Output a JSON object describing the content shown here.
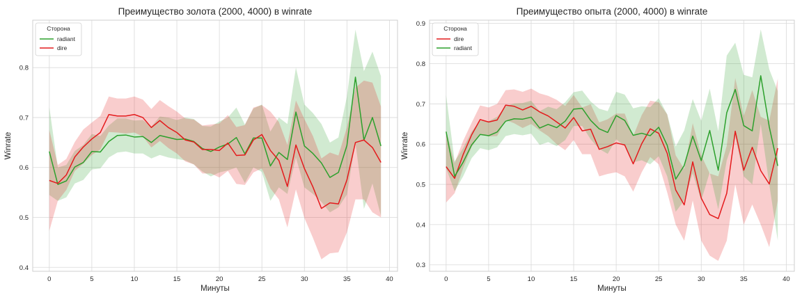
{
  "colors": {
    "green": "#2ca02c",
    "red": "#e41a1c",
    "grid": "#d9d9d9",
    "spine": "#cfcfcf"
  },
  "chart_data": [
    {
      "type": "line",
      "title": "Преимущество золота (2000, 4000) в winrate",
      "xlabel": "Минуты",
      "ylabel": "Winrate",
      "xlim": [
        -1.95,
        40.95
      ],
      "ylim": [
        0.392,
        0.895
      ],
      "xticks": [
        0,
        5,
        10,
        15,
        20,
        25,
        30,
        35,
        40
      ],
      "yticks": [
        0.4,
        0.5,
        0.6,
        0.7,
        0.8
      ],
      "grid": true,
      "legend": {
        "title": "Сторона",
        "placement": "top-left",
        "entries": [
          "radiant",
          "dire"
        ]
      },
      "x": [
        0,
        1,
        2,
        3,
        4,
        5,
        6,
        7,
        8,
        9,
        10,
        11,
        12,
        13,
        14,
        15,
        16,
        17,
        18,
        19,
        20,
        21,
        22,
        23,
        24,
        25,
        26,
        27,
        28,
        29,
        30,
        31,
        32,
        33,
        34,
        35,
        36,
        37,
        38,
        39
      ],
      "series": [
        {
          "name": "radiant",
          "color": "#2ca02c",
          "values": [
            0.632,
            0.566,
            0.573,
            0.601,
            0.61,
            0.632,
            0.631,
            0.652,
            0.664,
            0.665,
            0.661,
            0.662,
            0.65,
            0.664,
            0.66,
            0.656,
            0.657,
            0.652,
            0.638,
            0.632,
            0.641,
            0.647,
            0.66,
            0.627,
            0.659,
            0.659,
            0.603,
            0.63,
            0.616,
            0.711,
            0.643,
            0.628,
            0.609,
            0.58,
            0.59,
            0.644,
            0.781,
            0.655,
            0.7,
            0.643
          ],
          "ci_lower": [
            0.545,
            0.533,
            0.54,
            0.568,
            0.575,
            0.596,
            0.598,
            0.62,
            0.63,
            0.632,
            0.628,
            0.628,
            0.618,
            0.625,
            0.62,
            0.617,
            0.614,
            0.606,
            0.592,
            0.582,
            0.59,
            0.594,
            0.6,
            0.569,
            0.6,
            0.591,
            0.533,
            0.56,
            0.547,
            0.62,
            0.56,
            0.547,
            0.531,
            0.51,
            0.52,
            0.546,
            0.65,
            0.517,
            0.568,
            0.503
          ],
          "ci_upper": [
            0.721,
            0.6,
            0.605,
            0.633,
            0.645,
            0.667,
            0.663,
            0.684,
            0.698,
            0.698,
            0.694,
            0.695,
            0.682,
            0.702,
            0.7,
            0.695,
            0.7,
            0.697,
            0.683,
            0.682,
            0.692,
            0.7,
            0.72,
            0.686,
            0.718,
            0.726,
            0.672,
            0.7,
            0.687,
            0.8,
            0.726,
            0.709,
            0.687,
            0.65,
            0.66,
            0.742,
            0.876,
            0.793,
            0.832,
            0.783
          ]
        },
        {
          "name": "dire",
          "color": "#e41a1c",
          "values": [
            0.574,
            0.568,
            0.585,
            0.621,
            0.641,
            0.657,
            0.67,
            0.706,
            0.703,
            0.703,
            0.706,
            0.7,
            0.68,
            0.694,
            0.68,
            0.67,
            0.655,
            0.651,
            0.636,
            0.636,
            0.634,
            0.649,
            0.624,
            0.625,
            0.655,
            0.666,
            0.634,
            0.614,
            0.562,
            0.645,
            0.598,
            0.561,
            0.518,
            0.529,
            0.527,
            0.575,
            0.65,
            0.655,
            0.64,
            0.61
          ],
          "ci_lower": [
            0.473,
            0.533,
            0.555,
            0.593,
            0.608,
            0.625,
            0.636,
            0.671,
            0.67,
            0.668,
            0.67,
            0.662,
            0.64,
            0.653,
            0.639,
            0.628,
            0.612,
            0.606,
            0.588,
            0.588,
            0.58,
            0.593,
            0.567,
            0.565,
            0.59,
            0.598,
            0.558,
            0.536,
            0.48,
            0.556,
            0.499,
            0.459,
            0.416,
            0.428,
            0.43,
            0.47,
            0.536,
            0.536,
            0.51,
            0.5
          ],
          "ci_upper": [
            0.675,
            0.605,
            0.617,
            0.651,
            0.676,
            0.69,
            0.703,
            0.742,
            0.738,
            0.738,
            0.742,
            0.736,
            0.717,
            0.735,
            0.723,
            0.712,
            0.698,
            0.696,
            0.684,
            0.686,
            0.688,
            0.705,
            0.681,
            0.685,
            0.72,
            0.725,
            0.712,
            0.691,
            0.645,
            0.734,
            0.697,
            0.663,
            0.618,
            0.63,
            0.624,
            0.68,
            0.76,
            0.774,
            0.77,
            0.722
          ]
        }
      ]
    },
    {
      "type": "line",
      "title": "Преимущество опыта (2000, 4000) в winrate",
      "xlabel": "Минуты",
      "ylabel": "Winrate",
      "xlim": [
        -1.95,
        40.95
      ],
      "ylim": [
        0.284,
        0.908
      ],
      "xticks": [
        0,
        5,
        10,
        15,
        20,
        25,
        30,
        35,
        40
      ],
      "yticks": [
        0.3,
        0.4,
        0.5,
        0.6,
        0.7,
        0.8,
        0.9
      ],
      "grid": true,
      "legend": {
        "title": "Сторона",
        "placement": "top-left",
        "entries": [
          "dire",
          "radiant"
        ]
      },
      "x": [
        0,
        1,
        2,
        3,
        4,
        5,
        6,
        7,
        8,
        9,
        10,
        11,
        12,
        13,
        14,
        15,
        16,
        17,
        18,
        19,
        20,
        21,
        22,
        23,
        24,
        25,
        26,
        27,
        28,
        29,
        30,
        31,
        32,
        33,
        34,
        35,
        36,
        37,
        38,
        39
      ],
      "series": [
        {
          "name": "dire",
          "color": "#e41a1c",
          "values": [
            0.544,
            0.515,
            0.574,
            0.623,
            0.661,
            0.655,
            0.66,
            0.697,
            0.694,
            0.685,
            0.694,
            0.68,
            0.67,
            0.655,
            0.64,
            0.666,
            0.633,
            0.637,
            0.587,
            0.594,
            0.603,
            0.598,
            0.551,
            0.601,
            0.638,
            0.627,
            0.577,
            0.486,
            0.449,
            0.556,
            0.466,
            0.425,
            0.415,
            0.478,
            0.632,
            0.535,
            0.592,
            0.534,
            0.501,
            0.59
          ],
          "ci_lower": [
            0.455,
            0.478,
            0.54,
            0.593,
            0.626,
            0.619,
            0.62,
            0.66,
            0.652,
            0.64,
            0.65,
            0.634,
            0.62,
            0.6,
            0.585,
            0.61,
            0.575,
            0.575,
            0.52,
            0.526,
            0.53,
            0.52,
            0.482,
            0.53,
            0.568,
            0.55,
            0.48,
            0.4,
            0.36,
            0.46,
            0.36,
            0.323,
            0.31,
            0.36,
            0.5,
            0.4,
            0.45,
            0.4,
            0.344,
            0.46
          ],
          "ci_upper": [
            0.634,
            0.553,
            0.608,
            0.653,
            0.696,
            0.691,
            0.7,
            0.734,
            0.736,
            0.73,
            0.738,
            0.726,
            0.72,
            0.71,
            0.695,
            0.722,
            0.691,
            0.699,
            0.654,
            0.662,
            0.676,
            0.676,
            0.62,
            0.672,
            0.708,
            0.704,
            0.674,
            0.572,
            0.538,
            0.652,
            0.572,
            0.527,
            0.52,
            0.596,
            0.764,
            0.67,
            0.734,
            0.668,
            0.658,
            0.763
          ]
        },
        {
          "name": "radiant",
          "color": "#2ca02c",
          "values": [
            0.631,
            0.52,
            0.555,
            0.598,
            0.624,
            0.621,
            0.63,
            0.657,
            0.663,
            0.662,
            0.667,
            0.64,
            0.649,
            0.641,
            0.657,
            0.687,
            0.689,
            0.659,
            0.638,
            0.629,
            0.671,
            0.659,
            0.622,
            0.627,
            0.621,
            0.642,
            0.597,
            0.513,
            0.547,
            0.62,
            0.559,
            0.634,
            0.535,
            0.678,
            0.736,
            0.646,
            0.633,
            0.77,
            0.643,
            0.546
          ],
          "ci_lower": [
            0.54,
            0.483,
            0.52,
            0.565,
            0.59,
            0.585,
            0.592,
            0.62,
            0.625,
            0.622,
            0.626,
            0.598,
            0.605,
            0.595,
            0.61,
            0.645,
            0.645,
            0.612,
            0.588,
            0.576,
            0.612,
            0.595,
            0.555,
            0.56,
            0.55,
            0.57,
            0.52,
            0.432,
            0.46,
            0.528,
            0.46,
            0.53,
            0.438,
            0.56,
            0.62,
            0.52,
            0.5,
            0.65,
            0.5,
            0.36
          ],
          "ci_upper": [
            0.722,
            0.557,
            0.59,
            0.631,
            0.658,
            0.657,
            0.668,
            0.694,
            0.701,
            0.702,
            0.708,
            0.682,
            0.693,
            0.687,
            0.704,
            0.729,
            0.733,
            0.706,
            0.688,
            0.682,
            0.73,
            0.723,
            0.689,
            0.694,
            0.692,
            0.714,
            0.674,
            0.594,
            0.634,
            0.712,
            0.658,
            0.738,
            0.632,
            0.82,
            0.852,
            0.772,
            0.766,
            0.885,
            0.786,
            0.732
          ]
        }
      ]
    }
  ]
}
